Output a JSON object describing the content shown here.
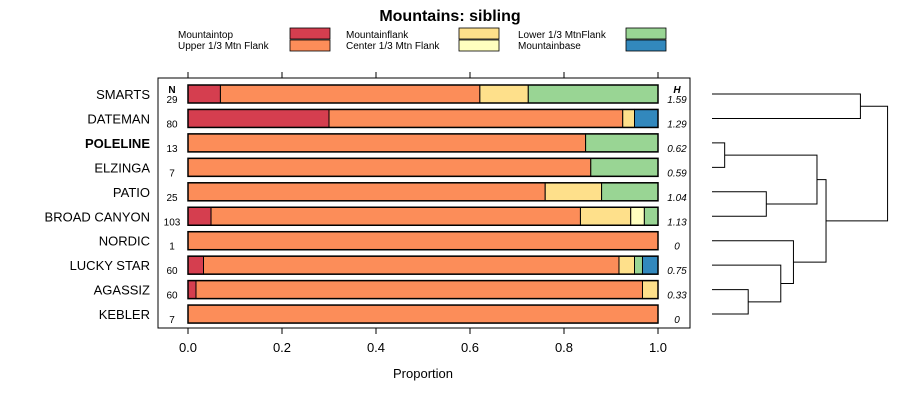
{
  "chart_data": {
    "type": "bar",
    "orientation": "horizontal",
    "stacked": true,
    "title": "Mountains: sibling",
    "xlabel": "Proportion",
    "ylabel": "",
    "xlim": [
      0,
      1
    ],
    "x_ticks": [
      "0.0",
      "0.2",
      "0.4",
      "0.6",
      "0.8",
      "1.0"
    ],
    "n_header": "N",
    "h_header": "H",
    "legend": [
      {
        "name": "Mountaintop",
        "color": "#d53e4f"
      },
      {
        "name": "Upper 1/3 Mtn Flank",
        "color": "#fc8d59"
      },
      {
        "name": "Mountainflank",
        "color": "#fee08b"
      },
      {
        "name": "Center 1/3 Mtn Flank",
        "color": "#ffffbf"
      },
      {
        "name": "Lower 1/3 MtnFlank",
        "color": "#99d594"
      },
      {
        "name": "Mountainbase",
        "color": "#3288bd"
      }
    ],
    "categories": [
      "SMARTS",
      "DATEMAN",
      "POLELINE",
      "ELZINGA",
      "PATIO",
      "BROAD CANYON",
      "NORDIC",
      "LUCKY STAR",
      "AGASSIZ",
      "KEBLER"
    ],
    "highlighted": "POLELINE",
    "n": [
      "29",
      "80",
      "13",
      "7",
      "25",
      "103",
      "1",
      "60",
      "60",
      "7"
    ],
    "h": [
      "1.59",
      "1.29",
      "0.62",
      "0.59",
      "1.04",
      "1.13",
      "0",
      "0.75",
      "0.33",
      "0"
    ],
    "segment_order": [
      "Mountaintop",
      "Upper 1/3 Mtn Flank",
      "Mountainflank",
      "Center 1/3 Mtn Flank",
      "Lower 1/3 MtnFlank",
      "Mountainbase"
    ],
    "values": [
      [
        0.069,
        0.552,
        0.103,
        0,
        0.276,
        0
      ],
      [
        0.3,
        0.625,
        0.025,
        0,
        0,
        0.05
      ],
      [
        0,
        0.846,
        0,
        0,
        0.154,
        0
      ],
      [
        0,
        0.857,
        0,
        0,
        0.143,
        0
      ],
      [
        0,
        0.76,
        0.12,
        0,
        0.12,
        0
      ],
      [
        0.049,
        0.786,
        0.107,
        0.029,
        0.029,
        0
      ],
      [
        0,
        1.0,
        0,
        0,
        0,
        0
      ],
      [
        0.033,
        0.884,
        0.033,
        0,
        0.017,
        0.033
      ],
      [
        0.017,
        0.95,
        0.033,
        0,
        0,
        0
      ],
      [
        0,
        1.0,
        0,
        0,
        0,
        0
      ]
    ],
    "dendrogram_merges": [
      [
        -3,
        -4,
        0.07
      ],
      [
        -9,
        -10,
        0.2
      ],
      [
        -8,
        2,
        0.38
      ],
      [
        -5,
        -6,
        0.3
      ],
      [
        -7,
        3,
        0.45
      ],
      [
        1,
        4,
        0.58
      ],
      [
        -1,
        -2,
        0.82
      ],
      [
        6,
        5,
        0.63
      ],
      [
        7,
        8,
        0.97
      ]
    ]
  }
}
